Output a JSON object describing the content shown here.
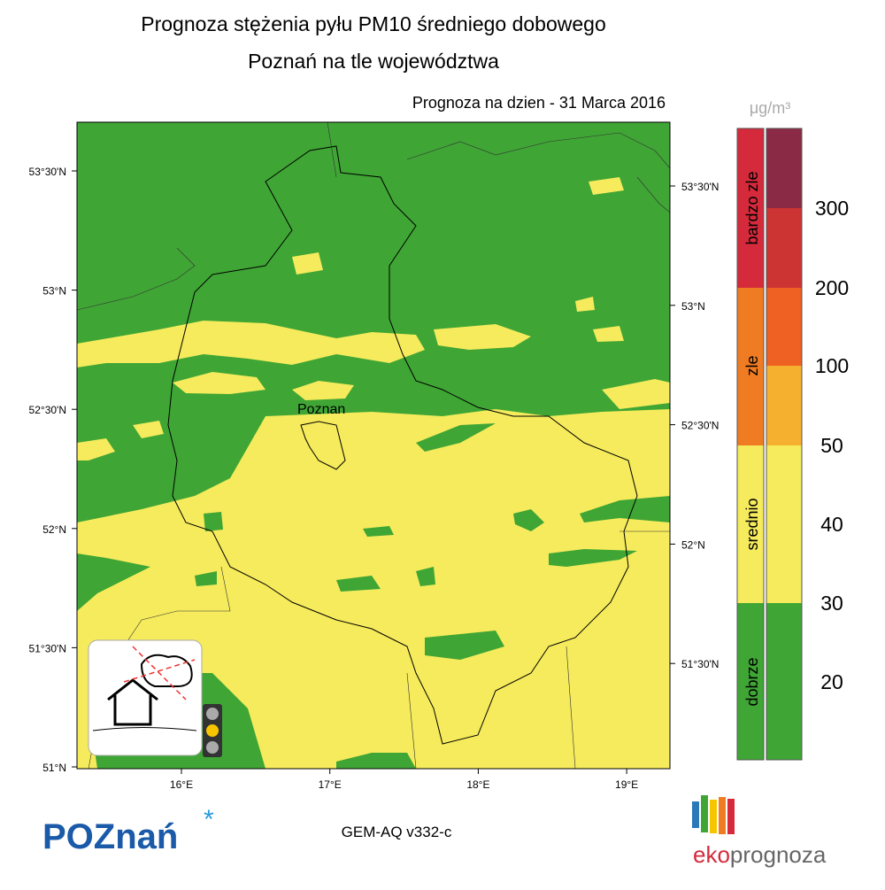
{
  "header": {
    "title": "Prognoza stężenia pyłu PM10 średniego dobowego",
    "subtitle": "Poznań na tle województwa",
    "date": "Prognoza na dzien -  31 Marca 2016"
  },
  "map": {
    "city": "Poznan",
    "lat_left": [
      "53°30'N",
      "53°N",
      "52°30'N",
      "52°N",
      "51°30'N",
      "51°N"
    ],
    "lat_right": [
      "53°30'N",
      "53°N",
      "52°30'N",
      "52°N",
      "51°30'N"
    ],
    "lon": [
      "16°E",
      "17°E",
      "18°E",
      "19°E"
    ]
  },
  "legend": {
    "unit": "μg/m³",
    "categories": [
      "bardzo zle",
      "zle",
      "srednio",
      "dobrze"
    ],
    "thresholds": [
      300,
      200,
      100,
      50,
      40,
      30,
      20
    ]
  },
  "footer": {
    "logo_left": "POZnań",
    "model": "GEM-AQ v332-c",
    "logo_right_a": "eko",
    "logo_right_b": "prognoza"
  }
}
